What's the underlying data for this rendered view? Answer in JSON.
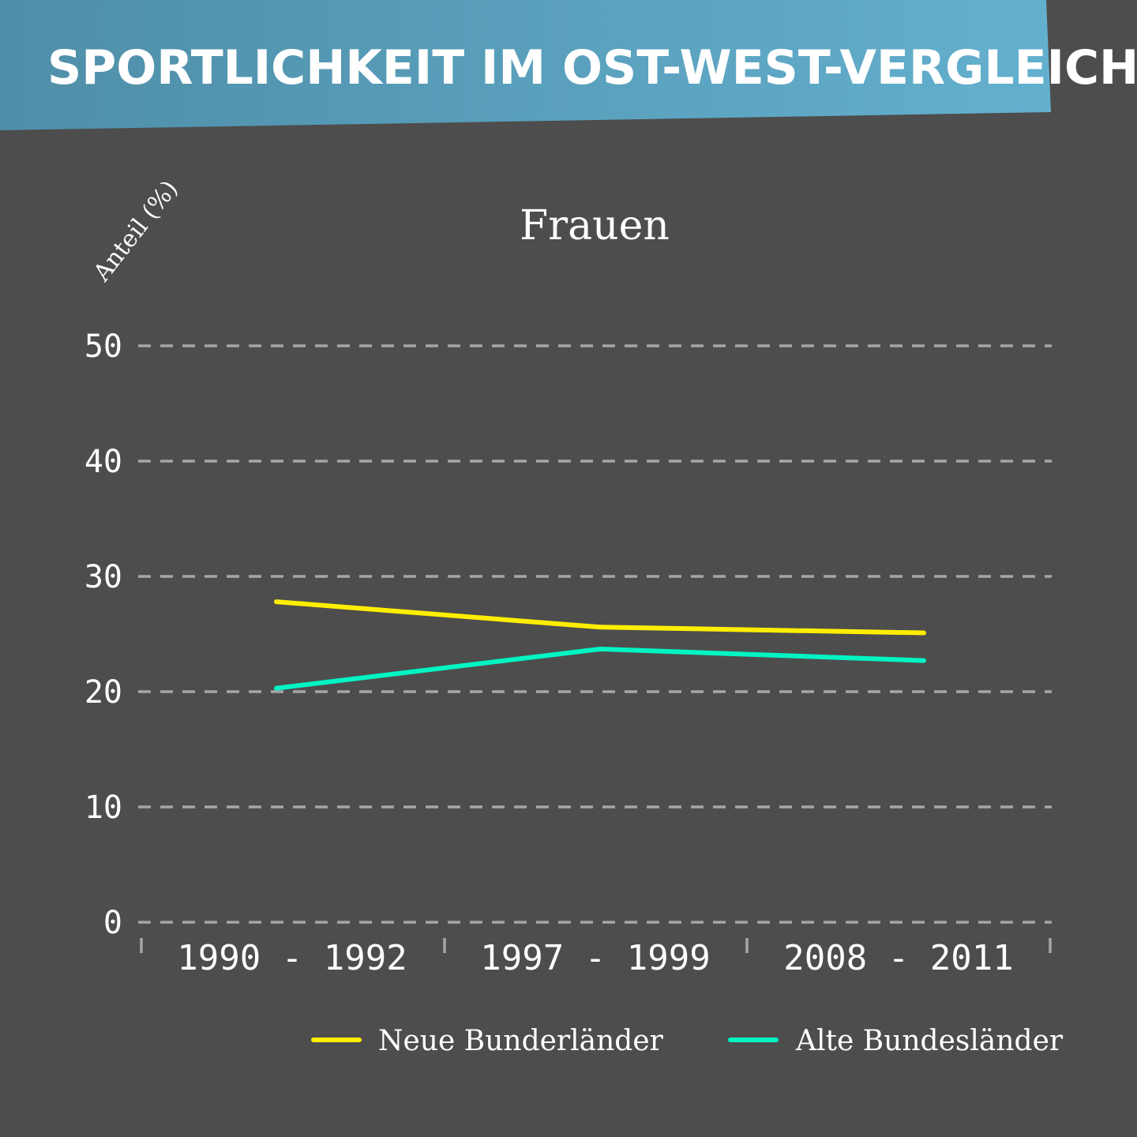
{
  "header": {
    "title": "SPORTLICHKEIT IM OST-WEST-VERGLEICH"
  },
  "colors": {
    "banner_left": "#4f8ea8",
    "banner_right": "#63b0ce",
    "background": "#4d4d4d",
    "grid": "#a6a6a6",
    "neue": "#ffee00",
    "alte": "#00f5c4"
  },
  "chart_data": {
    "type": "line",
    "title": "Frauen",
    "ylabel": "Anteil (%)",
    "xlabel": "",
    "categories": [
      "1990 - 1992",
      "1997 - 1999",
      "2008 - 2011"
    ],
    "ylim": [
      0,
      50
    ],
    "yticks": [
      0,
      10,
      20,
      30,
      40,
      50
    ],
    "grid": true,
    "legend_position": "bottom-right",
    "series": [
      {
        "name": "Neue Bunderländer",
        "color": "#ffee00",
        "values": [
          27.8,
          25.6,
          25.1
        ]
      },
      {
        "name": "Alte Bundesländer",
        "color": "#00f5c4",
        "values": [
          20.3,
          23.7,
          22.7
        ]
      }
    ]
  }
}
